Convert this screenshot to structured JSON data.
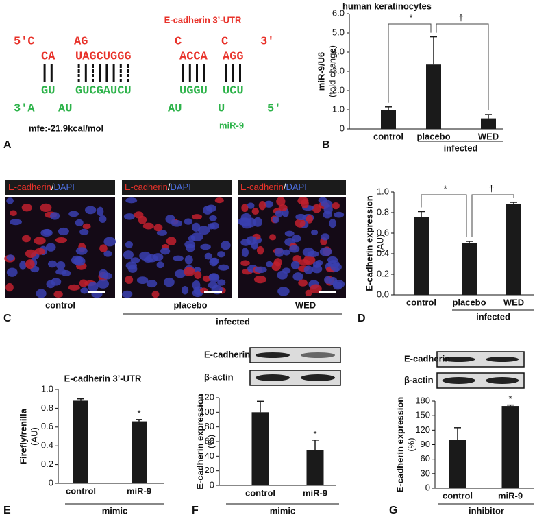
{
  "panel_labels": [
    "A",
    "B",
    "C",
    "D",
    "E",
    "F",
    "G"
  ],
  "panel_a": {
    "title": "E-cadherin 3’-UTR",
    "rows": [
      [
        "5'C",
        "AG",
        "C",
        "C",
        "3'"
      ],
      [
        "CA",
        "UAGCUGGG",
        "ACCA",
        "AGG"
      ],
      [
        "GU",
        "GUCGAUCU",
        "UGGU",
        "UCU"
      ],
      [
        "3'A",
        "AU",
        "AU",
        "U",
        "5'"
      ]
    ],
    "mfe": "mfe:-21.9kcal/mol",
    "mirna": "miR-9"
  },
  "panel_c": {
    "stain": [
      "E-cadherin",
      "/",
      "DAPI"
    ],
    "conditions": [
      "control",
      "placebo",
      "WED"
    ],
    "group_label": "infected"
  },
  "chart_data": [
    {
      "type": "bar",
      "title": "human keratinocytes",
      "ylabel": [
        "miR-9/U6",
        "(fold change)"
      ],
      "categories": [
        "control",
        "placebo",
        "WED"
      ],
      "values": [
        1.0,
        3.35,
        0.55
      ],
      "errors": [
        0.15,
        1.45,
        0.2
      ],
      "ylim": [
        0,
        6
      ],
      "yticks": [
        0,
        {
          "value": 1,
          "label": "1.0"
        },
        {
          "value": 2,
          "label": "2.0"
        },
        {
          "value": 3,
          "label": "3.0"
        },
        {
          "value": 4,
          "label": "4.0"
        },
        {
          "value": 5,
          "label": "5.0"
        },
        {
          "value": 6,
          "label": "6.0"
        }
      ],
      "group_label": "infected",
      "annotations": [
        "*",
        "†"
      ],
      "color": "#1a1a1a"
    },
    {
      "type": "bar",
      "ylabel": [
        "E-cadherin expression",
        "(AU)"
      ],
      "categories": [
        "control",
        "placebo",
        "WED"
      ],
      "values": [
        0.76,
        0.5,
        0.88
      ],
      "errors": [
        0.05,
        0.02,
        0.02
      ],
      "ylim": [
        0,
        1
      ],
      "yticks": [
        {
          "value": 0,
          "label": "0.0"
        },
        0.2,
        0.4,
        0.6,
        0.8,
        {
          "value": 1,
          "label": "1.0"
        }
      ],
      "group_label": "infected",
      "annotations": [
        "*",
        "†"
      ],
      "color": "#1a1a1a"
    },
    {
      "type": "bar",
      "title": "E-cadherin 3’-UTR",
      "ylabel": [
        "Firefly/renilla",
        "(AU)"
      ],
      "categories": [
        "control",
        "miR-9"
      ],
      "values": [
        0.88,
        0.66
      ],
      "errors": [
        0.02,
        0.02
      ],
      "ylim": [
        0,
        1
      ],
      "yticks": [
        0,
        0.2,
        0.4,
        0.6,
        0.8,
        {
          "value": 1,
          "label": "1.0"
        }
      ],
      "group_label": "mimic",
      "annotations": [
        "*"
      ],
      "color": "#1a1a1a"
    },
    {
      "type": "bar",
      "blot_labels": [
        "E-cadherin",
        "β-actin"
      ],
      "ylabel": [
        "E-cadherin expression",
        "(%)"
      ],
      "categories": [
        "control",
        "miR-9"
      ],
      "values": [
        100,
        48
      ],
      "errors": [
        15,
        14
      ],
      "ylim": [
        0,
        120
      ],
      "yticks": [
        0,
        20,
        40,
        60,
        80,
        100,
        120
      ],
      "group_label": "mimic",
      "annotations": [
        "*"
      ],
      "color": "#1a1a1a"
    },
    {
      "type": "bar",
      "blot_labels": [
        "E-cadherin",
        "β-actin"
      ],
      "ylabel": [
        "E-cadherin expression",
        "(%)"
      ],
      "categories": [
        "control",
        "miR-9"
      ],
      "values": [
        100,
        170
      ],
      "errors": [
        25,
        2
      ],
      "ylim": [
        0,
        180
      ],
      "yticks": [
        0,
        30,
        60,
        90,
        120,
        150,
        180
      ],
      "group_label": "inhibitor",
      "annotations": [
        "*"
      ],
      "color": "#1a1a1a"
    }
  ]
}
